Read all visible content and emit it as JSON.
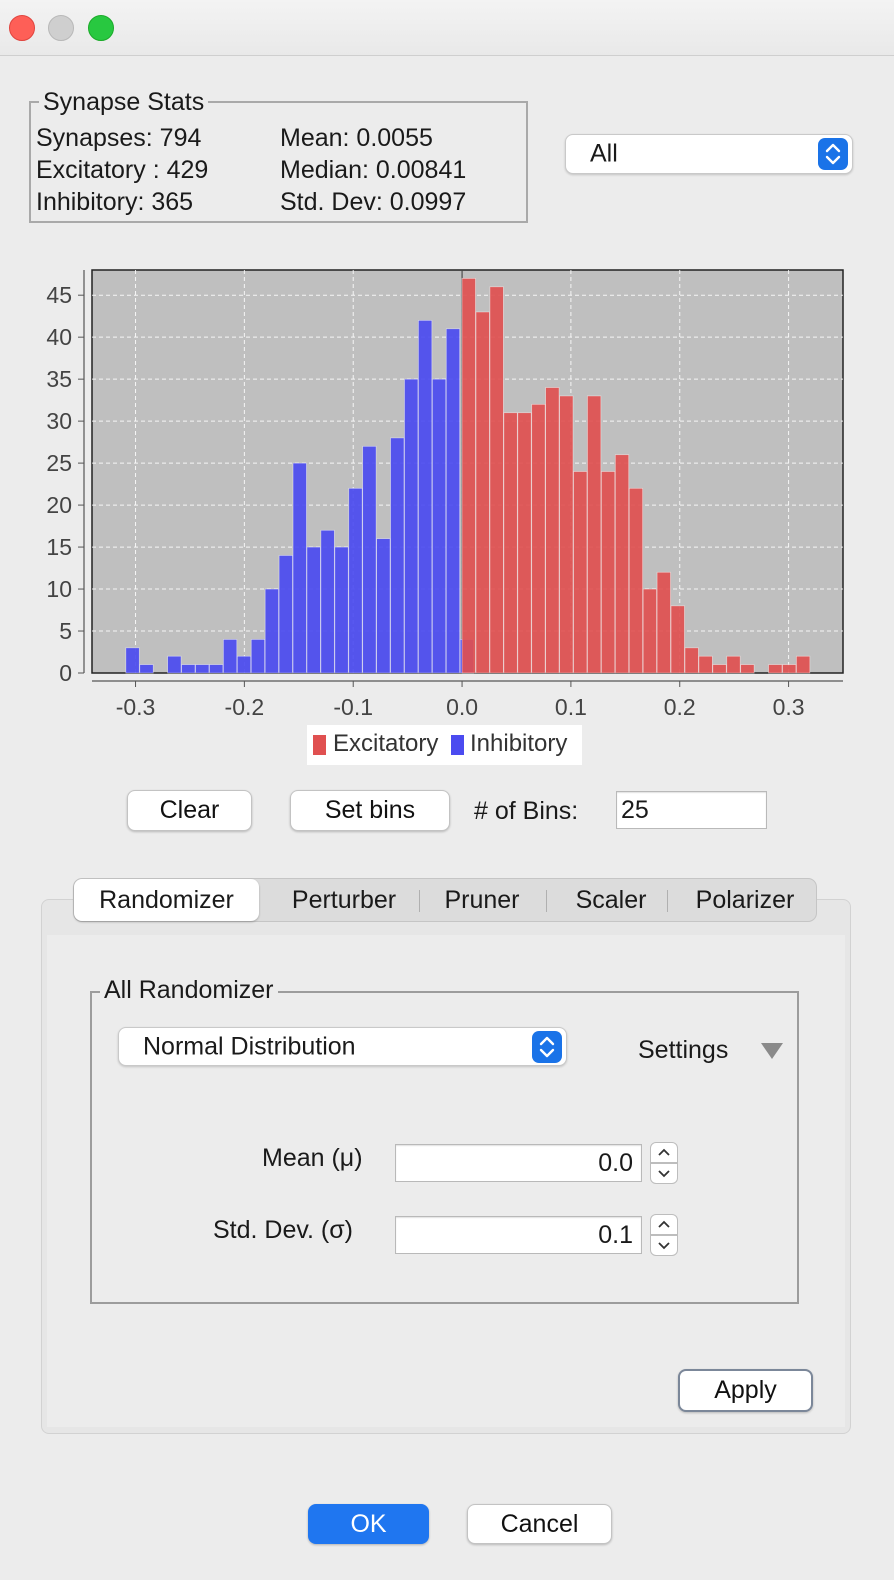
{
  "window": {
    "buttons": [
      "close",
      "minimize",
      "zoom"
    ]
  },
  "stats": {
    "title": "Synapse Stats",
    "synapses": "Synapses: 794",
    "excitatory": "Excitatory : 429",
    "inhibitory": "Inhibitory: 365",
    "mean": "Mean: 0.0055",
    "median": "Median: 0.00841",
    "stddev": "Std. Dev: 0.0997"
  },
  "filter": {
    "selected": "All"
  },
  "chart_data": {
    "type": "bar",
    "title": "",
    "xlabel": "",
    "ylabel": "",
    "xlim": [
      -0.34,
      0.35
    ],
    "ylim": [
      0,
      48
    ],
    "x_ticks": [
      "-0.3",
      "-0.2",
      "-0.1",
      "0.0",
      "0.1",
      "0.2",
      "0.3"
    ],
    "y_ticks": [
      "0",
      "5",
      "10",
      "15",
      "20",
      "25",
      "30",
      "35",
      "40",
      "45"
    ],
    "grid": true,
    "legend_position": "bottom",
    "bin_width": 0.0128,
    "series": [
      {
        "name": "Inhibitory",
        "color": "#4b4bf0",
        "bin_starts": [
          -0.3089,
          -0.2961,
          -0.2833,
          -0.2705,
          -0.2577,
          -0.2449,
          -0.2321,
          -0.2193,
          -0.2065,
          -0.1937,
          -0.1809,
          -0.1681,
          -0.1553,
          -0.1425,
          -0.1297,
          -0.1169,
          -0.1041,
          -0.0913,
          -0.0785,
          -0.0657,
          -0.0529,
          -0.0401,
          -0.0273,
          -0.0145,
          -0.0017
        ],
        "values": [
          3,
          1,
          0,
          2,
          1,
          1,
          1,
          4,
          2,
          4,
          10,
          14,
          25,
          15,
          17,
          15,
          22,
          27,
          16,
          28,
          35,
          42,
          35,
          41,
          4
        ]
      },
      {
        "name": "Excitatory",
        "color": "#e05050",
        "bin_starts": [
          0.0,
          0.0128,
          0.0256,
          0.0384,
          0.0512,
          0.064,
          0.0768,
          0.0896,
          0.1024,
          0.1152,
          0.128,
          0.1408,
          0.1536,
          0.1664,
          0.1792,
          0.192,
          0.2048,
          0.2176,
          0.2304,
          0.2432,
          0.256,
          0.2688,
          0.2816,
          0.2944,
          0.3072
        ],
        "values": [
          47,
          43,
          46,
          31,
          31,
          32,
          34,
          33,
          24,
          33,
          24,
          26,
          22,
          10,
          12,
          8,
          3,
          2,
          1,
          2,
          1,
          0,
          1,
          1,
          2
        ]
      }
    ]
  },
  "legend": {
    "excitatory": "Excitatory",
    "inhibitory": "Inhibitory"
  },
  "bins": {
    "clear_label": "Clear",
    "set_label": "Set bins",
    "count_label": "# of Bins:",
    "count_value": "25"
  },
  "tabs": [
    "Randomizer",
    "Perturber",
    "Pruner",
    "Scaler",
    "Polarizer"
  ],
  "randomizer": {
    "title": "All Randomizer",
    "distribution": "Normal Distribution",
    "settings_label": "Settings",
    "mean_label": "Mean (μ)",
    "mean_value": "0.0",
    "std_label": "Std. Dev. (σ)",
    "std_value": "0.1",
    "apply_label": "Apply"
  },
  "footer": {
    "ok_label": "OK",
    "cancel_label": "Cancel"
  },
  "colors": {
    "accent": "#1f76f0",
    "excitatory": "#e05050",
    "inhibitory": "#4b4bf0",
    "plot_bg": "#bfbfbf"
  }
}
